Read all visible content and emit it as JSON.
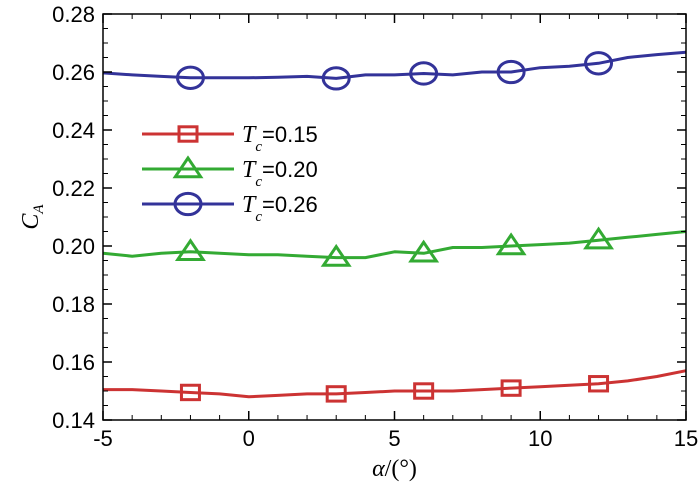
{
  "chart_data": {
    "type": "line",
    "title": "",
    "xlabel_symbol": "α",
    "xlabel_unit": "/(°)",
    "ylabel_symbol": "C",
    "ylabel_sub": "A",
    "xlim": [
      -5,
      15
    ],
    "ylim": [
      0.14,
      0.28
    ],
    "xticks": [
      -5,
      0,
      5,
      10,
      15
    ],
    "yticks": [
      0.14,
      0.16,
      0.18,
      0.2,
      0.22,
      0.24,
      0.26,
      0.28
    ],
    "xtick_labels": [
      "-5",
      "0",
      "5",
      "10",
      "15"
    ],
    "ytick_labels": [
      "0.14",
      "0.16",
      "0.18",
      "0.20",
      "0.22",
      "0.24",
      "0.26",
      "0.28"
    ],
    "grid": false,
    "legend_position": "upper-left",
    "series": [
      {
        "legend_symbol": "T",
        "legend_sub": "c",
        "legend_value": "=0.15",
        "color": "#cc3333",
        "marker": "square",
        "x": [
          -5,
          -4,
          -3,
          -2,
          -1,
          0,
          1,
          2,
          3,
          4,
          5,
          6,
          7,
          8,
          9,
          10,
          11,
          12,
          13,
          14,
          15
        ],
        "y": [
          0.1505,
          0.1505,
          0.15,
          0.1495,
          0.149,
          0.148,
          0.1485,
          0.149,
          0.149,
          0.1495,
          0.15,
          0.15,
          0.15,
          0.1505,
          0.151,
          0.1515,
          0.152,
          0.1525,
          0.1535,
          0.155,
          0.157
        ],
        "marker_x": [
          -2,
          3,
          6,
          9,
          12
        ]
      },
      {
        "legend_symbol": "T",
        "legend_sub": "c",
        "legend_value": "=0.20",
        "color": "#33aa33",
        "marker": "triangle",
        "x": [
          -5,
          -4,
          -3,
          -2,
          -1,
          0,
          1,
          2,
          3,
          4,
          5,
          6,
          7,
          8,
          9,
          10,
          11,
          12,
          13,
          14,
          15
        ],
        "y": [
          0.1975,
          0.1965,
          0.1975,
          0.198,
          0.1975,
          0.197,
          0.197,
          0.1965,
          0.196,
          0.196,
          0.198,
          0.1975,
          0.1995,
          0.1995,
          0.2,
          0.2005,
          0.201,
          0.202,
          0.203,
          0.204,
          0.205
        ],
        "marker_x": [
          -2,
          3,
          6,
          9,
          12
        ]
      },
      {
        "legend_symbol": "T",
        "legend_sub": "c",
        "legend_value": "=0.26",
        "color": "#333399",
        "marker": "circle",
        "x": [
          -5,
          -4,
          -3,
          -2,
          -1,
          0,
          1,
          2,
          3,
          4,
          5,
          6,
          7,
          8,
          9,
          10,
          11,
          12,
          13,
          14,
          15
        ],
        "y": [
          0.2597,
          0.259,
          0.2585,
          0.258,
          0.258,
          0.258,
          0.2582,
          0.2585,
          0.2578,
          0.259,
          0.259,
          0.2595,
          0.259,
          0.26,
          0.26,
          0.2615,
          0.262,
          0.263,
          0.265,
          0.266,
          0.2668
        ],
        "marker_x": [
          -2,
          3,
          6,
          9,
          12
        ]
      }
    ]
  }
}
